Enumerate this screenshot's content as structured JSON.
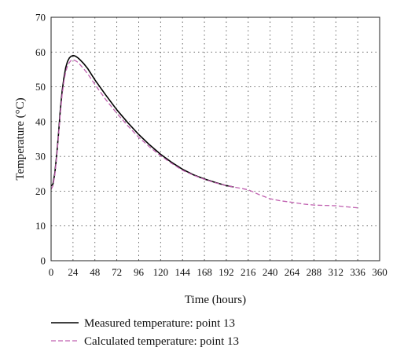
{
  "chart_data": {
    "type": "line",
    "title": "",
    "xlabel": "Time (hours)",
    "ylabel": "Temperature (°C)",
    "xlim": [
      0,
      360
    ],
    "ylim": [
      0,
      70
    ],
    "xticks": [
      0,
      24,
      48,
      72,
      96,
      120,
      144,
      168,
      192,
      216,
      240,
      264,
      288,
      312,
      336,
      360
    ],
    "yticks": [
      0,
      10,
      20,
      30,
      40,
      50,
      60,
      70
    ],
    "grid": true,
    "legend_position": "bottom",
    "series": [
      {
        "name": "Measured temperature: point 13",
        "color": "#000000",
        "dash": "solid",
        "x": [
          0,
          2,
          4,
          6,
          8,
          10,
          12,
          14,
          16,
          18,
          20,
          22,
          24,
          26,
          28,
          30,
          32,
          36,
          40,
          48,
          60,
          72,
          84,
          96,
          108,
          120,
          132,
          144,
          156,
          168,
          180,
          192,
          200
        ],
        "y": [
          21.5,
          22,
          25,
          30,
          36,
          43,
          48.5,
          52.5,
          55.5,
          57.3,
          58.3,
          58.8,
          59.0,
          58.9,
          58.6,
          58.2,
          57.7,
          56.6,
          55.3,
          52.0,
          47.6,
          43.4,
          39.7,
          36.3,
          33.3,
          30.6,
          28.3,
          26.3,
          24.7,
          23.5,
          22.5,
          21.6,
          21.2
        ]
      },
      {
        "name": "Calculated temperature: point 13",
        "color": "#c060b0",
        "dash": "dashed",
        "x": [
          0,
          2,
          4,
          6,
          8,
          10,
          12,
          14,
          16,
          18,
          20,
          22,
          24,
          26,
          28,
          30,
          32,
          36,
          40,
          48,
          60,
          72,
          84,
          96,
          108,
          120,
          132,
          144,
          156,
          168,
          180,
          192,
          204,
          216,
          228,
          240,
          252,
          264,
          276,
          288,
          300,
          312,
          324,
          336
        ],
        "y": [
          20.5,
          21.5,
          24.5,
          29.5,
          35.5,
          42,
          47.5,
          51.5,
          54.3,
          56.0,
          57.0,
          57.6,
          57.8,
          57.6,
          57.3,
          56.9,
          56.3,
          55.1,
          53.8,
          50.7,
          46.3,
          42.4,
          38.8,
          35.5,
          32.7,
          30.2,
          28.0,
          26.0,
          24.6,
          23.4,
          22.4,
          21.6,
          21.0,
          20.4,
          19.0,
          17.8,
          17.2,
          16.8,
          16.3,
          16.0,
          15.9,
          15.8,
          15.5,
          15.2
        ]
      }
    ]
  }
}
